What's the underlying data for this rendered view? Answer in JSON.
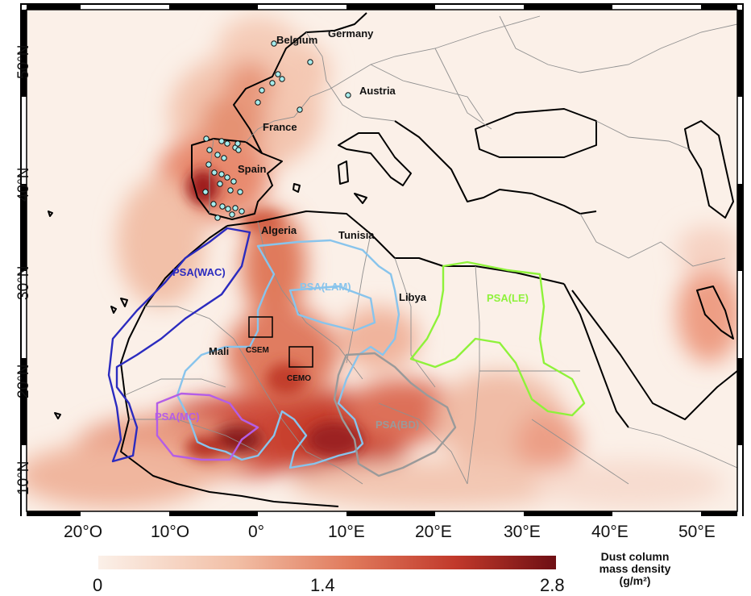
{
  "map": {
    "x_ticks": [
      "20°O",
      "10°O",
      "0°",
      "10°E",
      "20°E",
      "30°E",
      "40°E",
      "50°E"
    ],
    "y_ticks": [
      "10°N",
      "20°N",
      "30°N",
      "40°N",
      "50°N"
    ],
    "places": [
      "Belgium",
      "Germany",
      "Austria",
      "France",
      "Spain",
      "Algeria",
      "Tunisia",
      "Libya",
      "Mali"
    ],
    "boxes": [
      "CSEM",
      "CEMO"
    ],
    "regions": [
      {
        "label": "PSA(WAC)",
        "color": "#2b2bbf"
      },
      {
        "label": "PSA(LAM)",
        "color": "#88c4ec"
      },
      {
        "label": "PSA(LE)",
        "color": "#8ef23a"
      },
      {
        "label": "PSA(MC)",
        "color": "#b45ee6"
      },
      {
        "label": "PSA(BD)",
        "color": "#9a9a9a"
      }
    ],
    "marker_color": "#a6ecec"
  },
  "colorbar": {
    "min": "0",
    "mid": "1.4",
    "max": "2.8",
    "title_line1": "Dust column",
    "title_line2": "mass density",
    "title_line3": "(g/m²)",
    "color_low": "#fbf0e8",
    "color_high": "#6e0f14"
  }
}
